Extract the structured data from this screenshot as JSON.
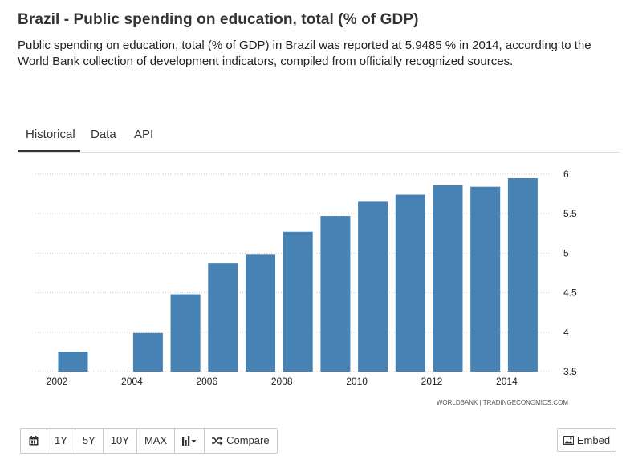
{
  "header": {
    "title": "Brazil - Public spending on education, total (% of GDP)",
    "description": "Public spending on education, total (% of GDP) in Brazil was reported at 5.9485 % in 2014, according to the World Bank collection of development indicators, compiled from officially recognized sources."
  },
  "tabs": [
    {
      "label": "Historical",
      "active": true
    },
    {
      "label": "Data",
      "active": false
    },
    {
      "label": "API",
      "active": false
    }
  ],
  "chart_data": {
    "type": "bar",
    "title": "",
    "xlabel": "",
    "ylabel": "",
    "categories": [
      "2002",
      "2003",
      "2004",
      "2005",
      "2006",
      "2007",
      "2008",
      "2009",
      "2010",
      "2011",
      "2012",
      "2013",
      "2014"
    ],
    "values": [
      3.75,
      null,
      3.99,
      4.48,
      4.87,
      4.98,
      5.27,
      5.47,
      5.65,
      5.74,
      5.86,
      5.84,
      5.9485
    ],
    "x_tick_labels": [
      "2002",
      "2004",
      "2006",
      "2008",
      "2010",
      "2012",
      "2014"
    ],
    "y_ticks": [
      3.5,
      4,
      4.5,
      5,
      5.5,
      6
    ],
    "y_tick_labels": [
      "3.5",
      "4",
      "4.5",
      "5",
      "5.5",
      "6"
    ],
    "ylim": [
      3.5,
      6.05
    ],
    "bar_color": "#4682b4",
    "grid_color": "#cccccc",
    "source": "WORLDBANK | TRADINGECONOMICS.COM"
  },
  "toolbar": {
    "calendar_icon": "calendar-icon",
    "buttons": [
      "1Y",
      "5Y",
      "10Y",
      "MAX"
    ],
    "chart_type_icon": "bar-chart-icon",
    "compare_icon": "shuffle-icon",
    "compare_label": "Compare",
    "embed_icon": "image-icon",
    "embed_label": "Embed"
  }
}
